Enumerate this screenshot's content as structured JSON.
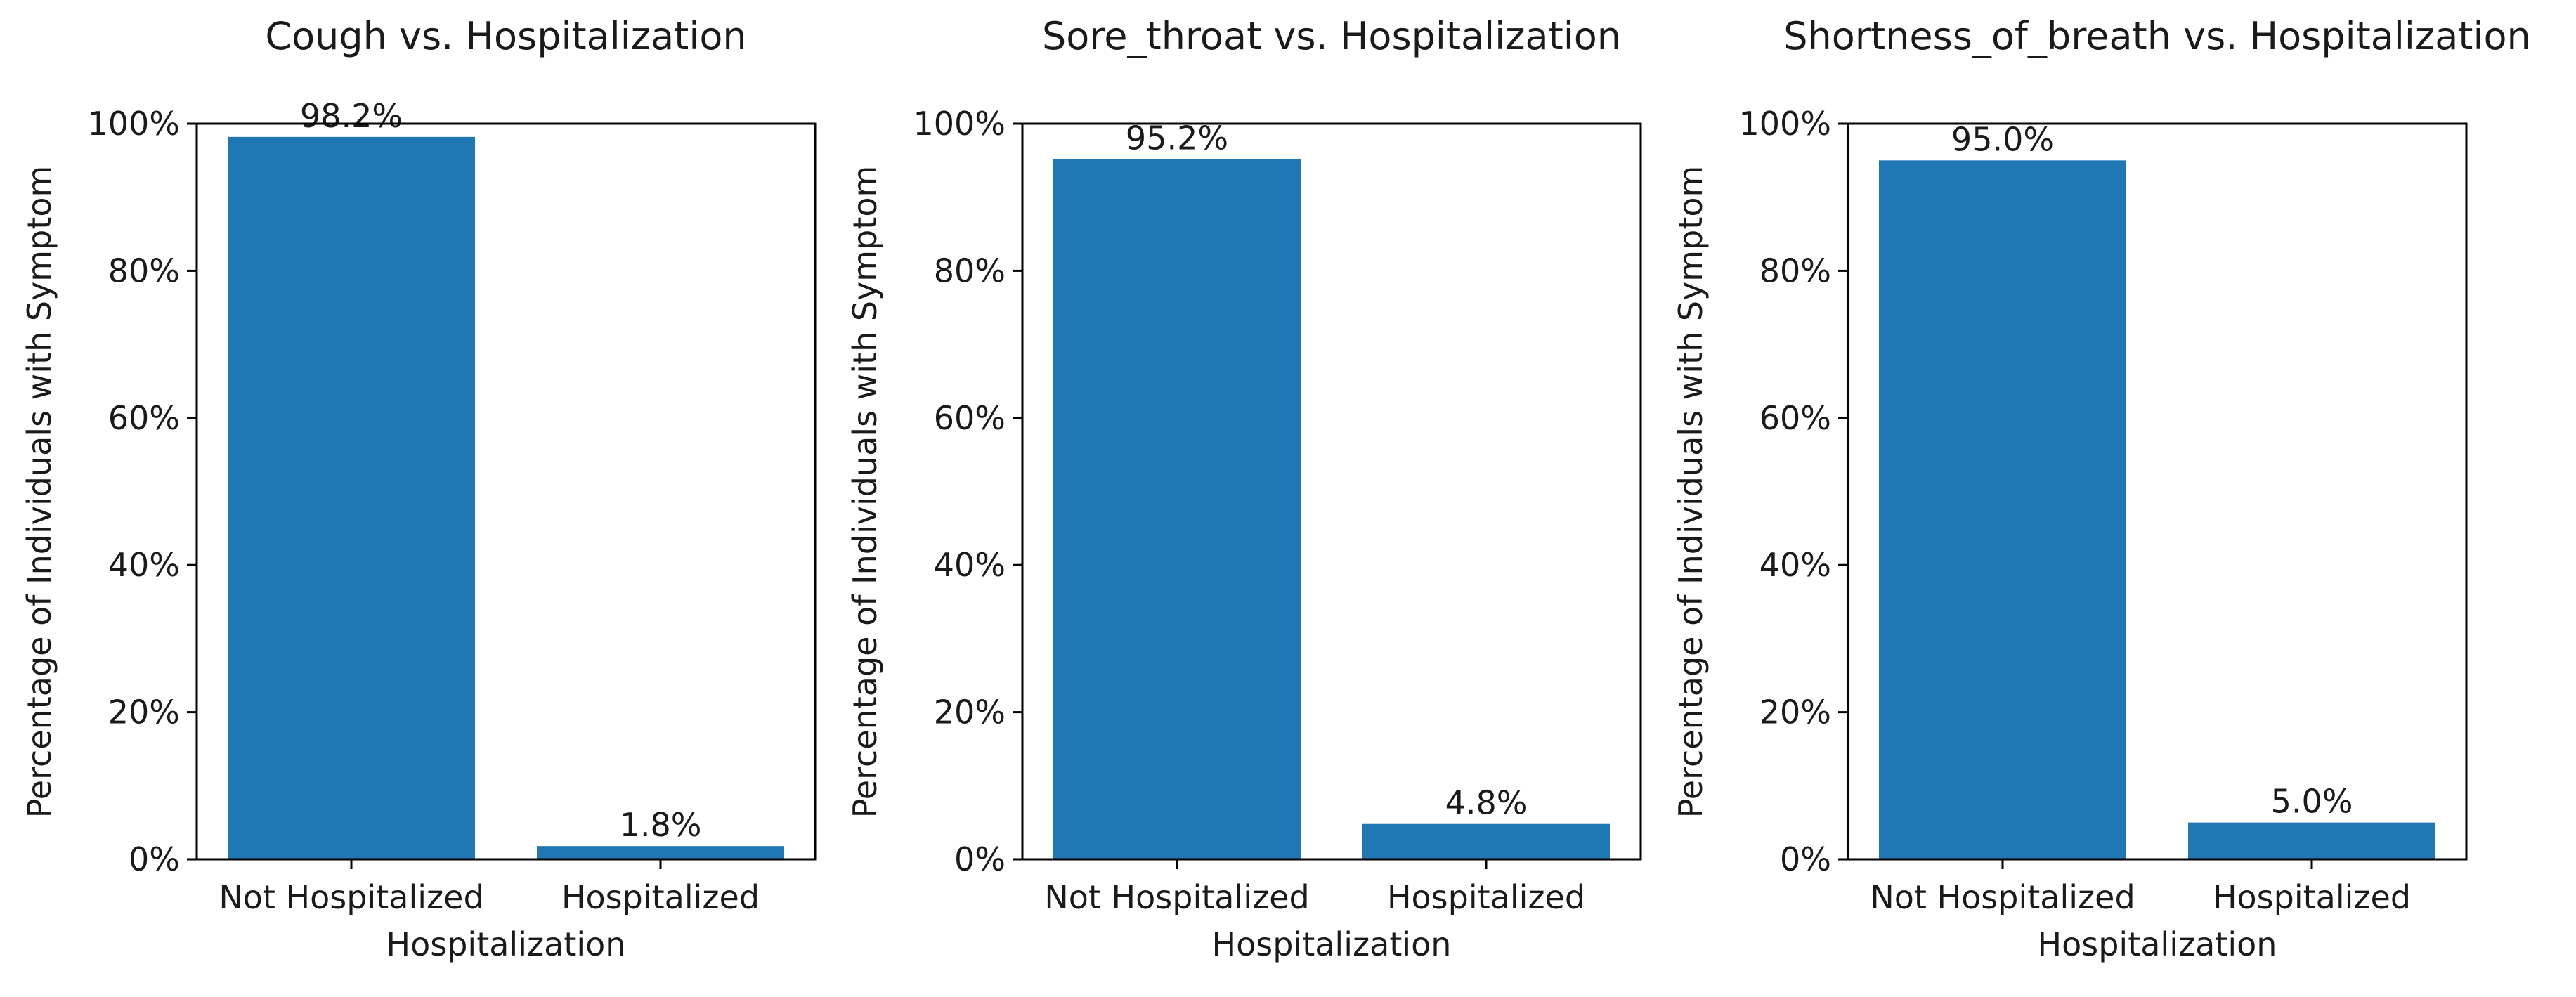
{
  "chart_data": [
    {
      "type": "bar",
      "title": "Cough vs. Hospitalization",
      "xlabel": "Hospitalization",
      "ylabel": "Percentage of Individuals with Symptom",
      "categories": [
        "Not Hospitalized",
        "Hospitalized"
      ],
      "values": [
        98.2,
        1.8
      ],
      "data_labels": [
        "98.2%",
        "1.8%"
      ],
      "ylim": [
        0,
        100
      ],
      "yticks": [
        0,
        20,
        40,
        60,
        80,
        100
      ],
      "ytick_labels": [
        "0%",
        "20%",
        "40%",
        "60%",
        "80%",
        "100%"
      ],
      "grid": false
    },
    {
      "type": "bar",
      "title": "Sore_throat vs. Hospitalization",
      "xlabel": "Hospitalization",
      "ylabel": "Percentage of Individuals with Symptom",
      "categories": [
        "Not Hospitalized",
        "Hospitalized"
      ],
      "values": [
        95.2,
        4.8
      ],
      "data_labels": [
        "95.2%",
        "4.8%"
      ],
      "ylim": [
        0,
        100
      ],
      "yticks": [
        0,
        20,
        40,
        60,
        80,
        100
      ],
      "ytick_labels": [
        "0%",
        "20%",
        "40%",
        "60%",
        "80%",
        "100%"
      ],
      "grid": false
    },
    {
      "type": "bar",
      "title": "Shortness_of_breath vs. Hospitalization",
      "xlabel": "Hospitalization",
      "ylabel": "Percentage of Individuals with Symptom",
      "categories": [
        "Not Hospitalized",
        "Hospitalized"
      ],
      "values": [
        95.0,
        5.0
      ],
      "data_labels": [
        "95.0%",
        "5.0%"
      ],
      "ylim": [
        0,
        100
      ],
      "yticks": [
        0,
        20,
        40,
        60,
        80,
        100
      ],
      "ytick_labels": [
        "0%",
        "20%",
        "40%",
        "60%",
        "80%",
        "100%"
      ],
      "grid": false
    }
  ],
  "colors": {
    "bar": "#1f77b4",
    "axis": "#000000"
  }
}
